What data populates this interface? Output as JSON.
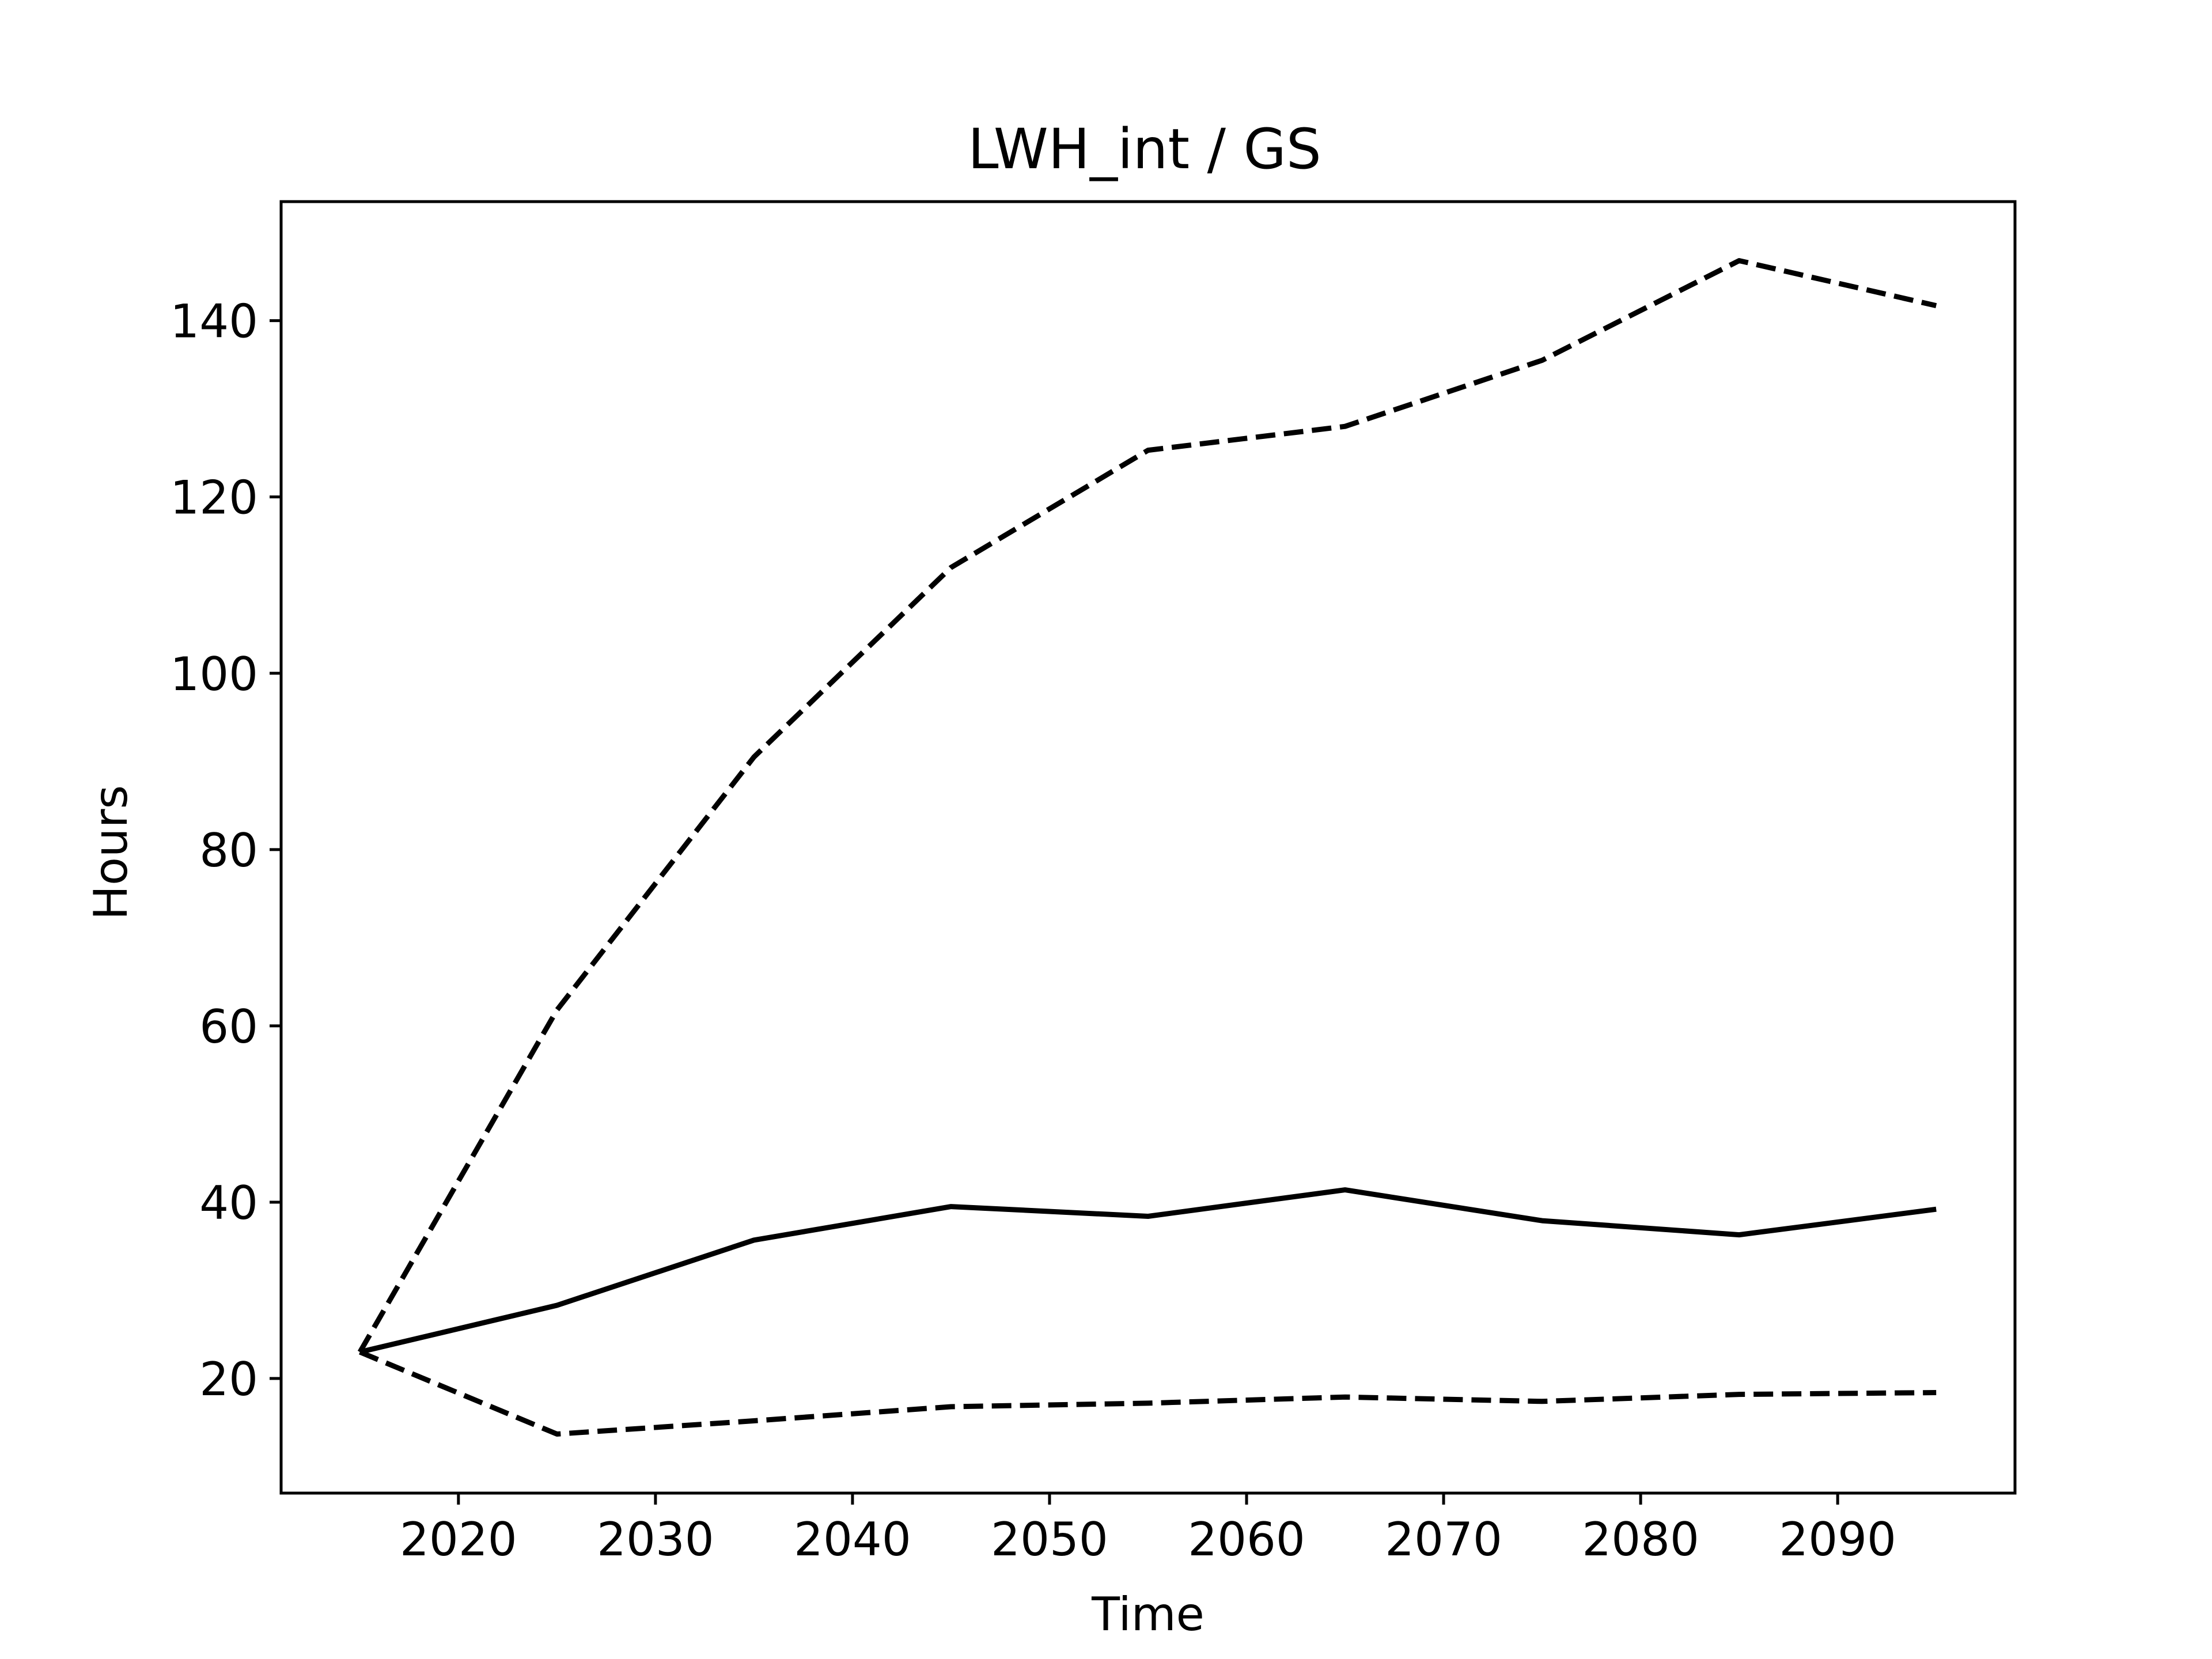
{
  "chart_data": {
    "type": "line",
    "title": "LWH_int / GS",
    "xlabel": "Time",
    "ylabel": "Hours",
    "x": [
      2015,
      2025,
      2035,
      2045,
      2055,
      2065,
      2075,
      2085,
      2095
    ],
    "series": [
      {
        "style": "solid",
        "color": "#000000",
        "values": [
          23.0,
          28.3,
          35.7,
          39.5,
          38.4,
          41.4,
          37.9,
          36.3,
          39.2
        ]
      },
      {
        "style": "dashed",
        "color": "#000000",
        "values": [
          23.0,
          61.8,
          90.5,
          112.0,
          125.3,
          128.0,
          135.5,
          146.8,
          141.7
        ]
      },
      {
        "style": "dashed",
        "color": "#000000",
        "values": [
          23.0,
          13.7,
          15.2,
          16.8,
          17.2,
          17.9,
          17.4,
          18.2,
          18.4
        ]
      }
    ],
    "xlim": [
      2011,
      2099
    ],
    "ylim": [
      7,
      153.5
    ],
    "x_ticks": [
      2020,
      2030,
      2040,
      2050,
      2060,
      2070,
      2080,
      2090
    ],
    "x_tick_labels": [
      "2020",
      "2030",
      "2040",
      "2050",
      "2060",
      "2070",
      "2080",
      "2090"
    ],
    "y_ticks": [
      20,
      40,
      60,
      80,
      100,
      120,
      140
    ],
    "y_tick_labels": [
      "20",
      "40",
      "60",
      "80",
      "100",
      "120",
      "140"
    ],
    "grid": false,
    "legend": "none"
  }
}
